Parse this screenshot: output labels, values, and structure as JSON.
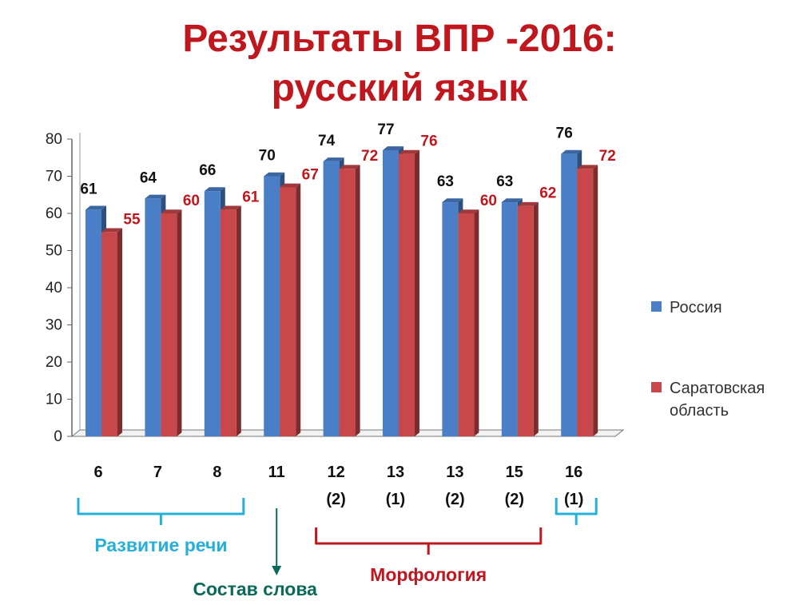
{
  "title_line1": "Результаты ВПР -2016:",
  "title_line2": "русский язык",
  "colors": {
    "russia": "#4a7fc8",
    "saratov": "#c8474a",
    "title": "#c0161e",
    "speech": "#25b0d8",
    "word": "#0b6a5a",
    "morph": "#c0161e"
  },
  "chart_data": {
    "type": "bar",
    "title": "",
    "xlabel": "",
    "ylabel": "",
    "ylim": [
      0,
      80
    ],
    "yticks": [
      0,
      10,
      20,
      30,
      40,
      50,
      60,
      70,
      80
    ],
    "categories": [
      [
        "6"
      ],
      [
        "7"
      ],
      [
        "8"
      ],
      [
        "11"
      ],
      [
        "12",
        "(2)"
      ],
      [
        "13",
        "(1)"
      ],
      [
        "13",
        "(2)"
      ],
      [
        "15",
        "(2)"
      ],
      [
        "16",
        "(1)"
      ]
    ],
    "series": [
      {
        "name": "Россия",
        "values": [
          61,
          64,
          66,
          70,
          74,
          77,
          63,
          63,
          76
        ]
      },
      {
        "name": "Саратовская область",
        "values": [
          55,
          60,
          61,
          67,
          72,
          76,
          60,
          62,
          72
        ]
      }
    ],
    "legend_position": "right",
    "grid": false,
    "groups": [
      {
        "label": "Развитие речи",
        "from": 0,
        "to": 2,
        "color_key": "speech"
      },
      {
        "label": "Состав слова",
        "from": 3,
        "to": 3,
        "color_key": "word"
      },
      {
        "label": "Морфология",
        "from": 4,
        "to": 7,
        "color_key": "morph"
      },
      {
        "label": "",
        "from": 8,
        "to": 8,
        "color_key": "speech"
      }
    ]
  }
}
